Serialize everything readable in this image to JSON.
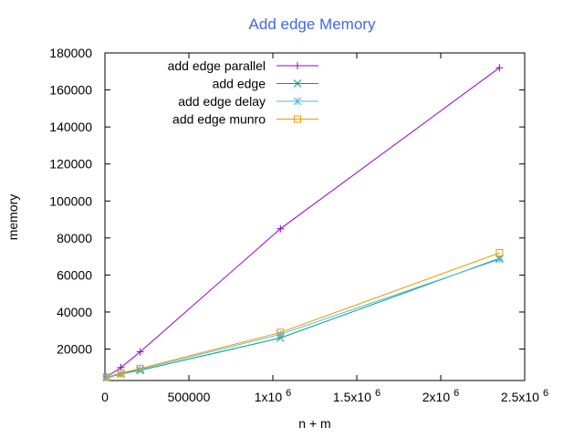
{
  "chart_data": {
    "type": "line",
    "title": "Add edge Memory",
    "title_color": "#4169e1",
    "xlabel": "n + m",
    "ylabel": "memory",
    "xlim": [
      0,
      2500000
    ],
    "ylim": [
      3000,
      180000
    ],
    "x_ticks": [
      {
        "value": 0,
        "label": "0"
      },
      {
        "value": 500000,
        "label": "500000"
      },
      {
        "value": 1000000,
        "label": "1x10",
        "exp": "6"
      },
      {
        "value": 1500000,
        "label": "1.5x10",
        "exp": "6"
      },
      {
        "value": 2000000,
        "label": "2x10",
        "exp": "6"
      },
      {
        "value": 2500000,
        "label": "2.5x10",
        "exp": "6"
      }
    ],
    "y_ticks": [
      {
        "value": 20000,
        "label": "20000"
      },
      {
        "value": 40000,
        "label": "40000"
      },
      {
        "value": 60000,
        "label": "60000"
      },
      {
        "value": 80000,
        "label": "80000"
      },
      {
        "value": 100000,
        "label": "100000"
      },
      {
        "value": 120000,
        "label": "120000"
      },
      {
        "value": 140000,
        "label": "140000"
      },
      {
        "value": 160000,
        "label": "160000"
      },
      {
        "value": 180000,
        "label": "180000"
      }
    ],
    "grid": false,
    "legend_position": "top-left",
    "series": [
      {
        "name": "add edge parallel",
        "color": "#9400d3",
        "marker": "plus",
        "x": [
          10000,
          95000,
          210000,
          1045000,
          2350000
        ],
        "y": [
          5000,
          10000,
          18500,
          85000,
          172000
        ]
      },
      {
        "name": "add edge",
        "color": "#009e73",
        "marker": "cross",
        "x": [
          10000,
          95000,
          210000,
          1045000,
          2350000
        ],
        "y": [
          4500,
          6500,
          8500,
          26000,
          69000
        ]
      },
      {
        "name": "add edge delay",
        "color": "#56b4e9",
        "marker": "star",
        "x": [
          10000,
          95000,
          210000,
          1045000,
          2350000
        ],
        "y": [
          4700,
          6700,
          9000,
          28000,
          68500
        ]
      },
      {
        "name": "add edge munro",
        "color": "#e69f00",
        "marker": "square",
        "x": [
          10000,
          95000,
          210000,
          1045000,
          2350000
        ],
        "y": [
          4800,
          7000,
          9500,
          29000,
          72000
        ]
      }
    ]
  }
}
